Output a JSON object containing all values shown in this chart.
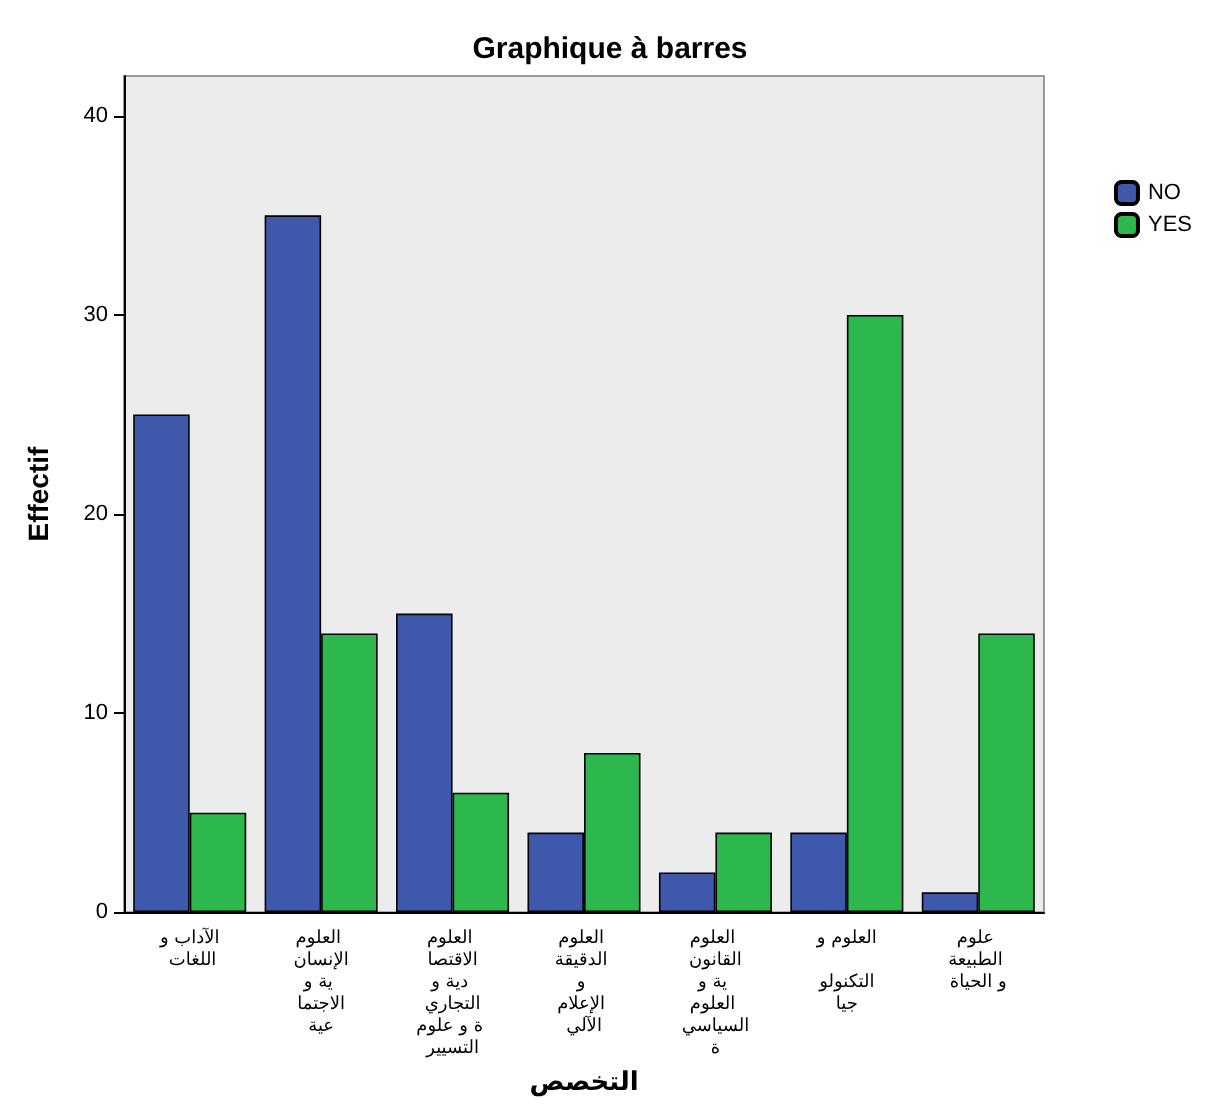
{
  "chart_data": {
    "type": "bar",
    "title": "Graphique à barres",
    "xlabel": "التخصص",
    "ylabel": "Effectif",
    "categories": [
      "الآداب و اللغات",
      "العلوم الإنسانية و الاجتماعية",
      "العلوم الاقتصادية و التجارية و علوم التسيير",
      "العلوم الدقيقة و الإعلام الآلي",
      "العلوم القانونية و العلوم السياسية",
      "العلوم و التكنولوجيا",
      "علوم الطبيعة و الحياة"
    ],
    "series": [
      {
        "name": "NO",
        "color": "#3e58ac",
        "values": [
          25,
          35,
          15,
          4,
          2,
          4,
          1
        ]
      },
      {
        "name": "YES",
        "color": "#2db84d",
        "values": [
          5,
          14,
          6,
          8,
          4,
          30,
          14
        ]
      }
    ],
    "ylim": [
      0,
      42
    ],
    "yticks": [
      0,
      10,
      20,
      30,
      40
    ],
    "grid": false,
    "legend": "right"
  }
}
